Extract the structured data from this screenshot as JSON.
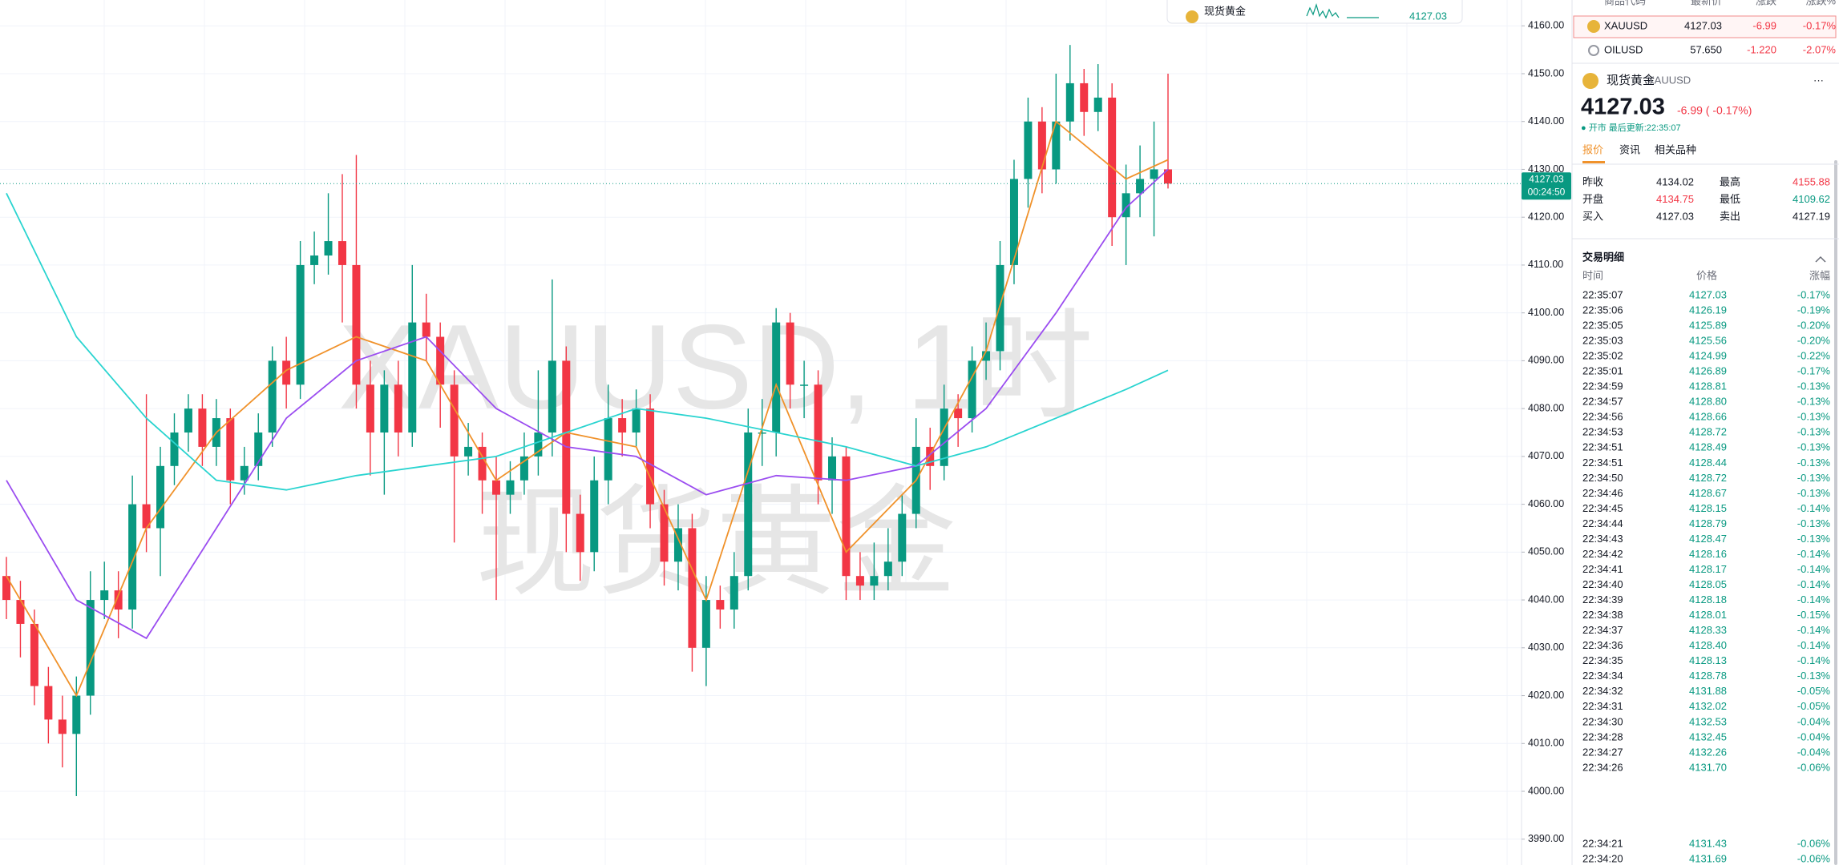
{
  "chart_data": {
    "type": "candlestick",
    "watermark": [
      "XAUUSD, 1时",
      "现货黄金"
    ],
    "up_color": "#089981",
    "down_color": "#f23645",
    "ylim": [
      3984.6,
      4165.4
    ],
    "yticks": [
      {
        "value": 4160,
        "label": "4160.00"
      },
      {
        "value": 4150,
        "label": "4150.00"
      },
      {
        "value": 4140,
        "label": "4140.00"
      },
      {
        "value": 4130,
        "label": "4130.00"
      },
      {
        "value": 4120,
        "label": "4120.00"
      },
      {
        "value": 4110,
        "label": "4110.00"
      },
      {
        "value": 4100,
        "label": "4100.00"
      },
      {
        "value": 4090,
        "label": "4090.00"
      },
      {
        "value": 4080,
        "label": "4080.00"
      },
      {
        "value": 4070,
        "label": "4070.00"
      },
      {
        "value": 4060,
        "label": "4060.00"
      },
      {
        "value": 4050,
        "label": "4050.00"
      },
      {
        "value": 4040,
        "label": "4040.00"
      },
      {
        "value": 4030,
        "label": "4030.00"
      },
      {
        "value": 4020,
        "label": "4020.00"
      },
      {
        "value": 4010,
        "label": "4010.00"
      },
      {
        "value": 4000,
        "label": "4000.00"
      },
      {
        "value": 3990,
        "label": "3990.00"
      }
    ],
    "grid": true,
    "last_price": {
      "value": 4127.03,
      "label": "4127.03"
    },
    "countdown": "00:24:50",
    "ohlc": [
      [
        4045,
        4049,
        4036,
        4040
      ],
      [
        4040,
        4044,
        4028,
        4035
      ],
      [
        4035,
        4038,
        4018,
        4022
      ],
      [
        4022,
        4026,
        4010,
        4015
      ],
      [
        4015,
        4020,
        4005,
        4012
      ],
      [
        4012,
        4024,
        3999,
        4020
      ],
      [
        4020,
        4046,
        4016,
        4040
      ],
      [
        4040,
        4048,
        4036,
        4042
      ],
      [
        4042,
        4046,
        4032,
        4038
      ],
      [
        4038,
        4066,
        4034,
        4060
      ],
      [
        4060,
        4083,
        4050,
        4055
      ],
      [
        4055,
        4072,
        4045,
        4068
      ],
      [
        4068,
        4079,
        4064,
        4075
      ],
      [
        4075,
        4083,
        4071,
        4080
      ],
      [
        4080,
        4083,
        4068,
        4072
      ],
      [
        4072,
        4082,
        4068,
        4078
      ],
      [
        4078,
        4080,
        4060,
        4065
      ],
      [
        4065,
        4072,
        4062,
        4068
      ],
      [
        4068,
        4079,
        4065,
        4075
      ],
      [
        4075,
        4093,
        4072,
        4090
      ],
      [
        4090,
        4095,
        4080,
        4085
      ],
      [
        4085,
        4115,
        4082,
        4110
      ],
      [
        4110,
        4117,
        4106,
        4112
      ],
      [
        4112,
        4125,
        4108,
        4115
      ],
      [
        4115,
        4129,
        4098,
        4110
      ],
      [
        4110,
        4133,
        4080,
        4085
      ],
      [
        4085,
        4090,
        4066,
        4075
      ],
      [
        4075,
        4088,
        4062,
        4085
      ],
      [
        4085,
        4090,
        4070,
        4075
      ],
      [
        4075,
        4110,
        4072,
        4098
      ],
      [
        4098,
        4104,
        4090,
        4095
      ],
      [
        4095,
        4098,
        4076,
        4085
      ],
      [
        4085,
        4088,
        4052,
        4070
      ],
      [
        4070,
        4077,
        4066,
        4072
      ],
      [
        4072,
        4075,
        4058,
        4065
      ],
      [
        4065,
        4070,
        4040,
        4062
      ],
      [
        4062,
        4069,
        4058,
        4065
      ],
      [
        4065,
        4075,
        4062,
        4070
      ],
      [
        4070,
        4088,
        4066,
        4075
      ],
      [
        4075,
        4107,
        4070,
        4090
      ],
      [
        4090,
        4093,
        4050,
        4058
      ],
      [
        4058,
        4062,
        4044,
        4050
      ],
      [
        4050,
        4070,
        4046,
        4065
      ],
      [
        4065,
        4085,
        4060,
        4078
      ],
      [
        4078,
        4082,
        4070,
        4075
      ],
      [
        4075,
        4084,
        4072,
        4080
      ],
      [
        4080,
        4083,
        4055,
        4060
      ],
      [
        4060,
        4063,
        4043,
        4048
      ],
      [
        4048,
        4060,
        4042,
        4055
      ],
      [
        4055,
        4058,
        4025,
        4030
      ],
      [
        4030,
        4045,
        4022,
        4040
      ],
      [
        4040,
        4043,
        4034,
        4038
      ],
      [
        4038,
        4050,
        4034,
        4045
      ],
      [
        4045,
        4080,
        4042,
        4075
      ],
      [
        4075,
        4082,
        4068,
        4075
      ],
      [
        4075,
        4101,
        4070,
        4098
      ],
      [
        4098,
        4100,
        4080,
        4085
      ],
      [
        4085,
        4090,
        4078,
        4085
      ],
      [
        4085,
        4088,
        4060,
        4065
      ],
      [
        4065,
        4074,
        4058,
        4070
      ],
      [
        4070,
        4072,
        4040,
        4045
      ],
      [
        4045,
        4050,
        4040,
        4043
      ],
      [
        4043,
        4052,
        4040,
        4045
      ],
      [
        4045,
        4055,
        4042,
        4048
      ],
      [
        4048,
        4062,
        4045,
        4058
      ],
      [
        4058,
        4078,
        4055,
        4072
      ],
      [
        4072,
        4076,
        4063,
        4068
      ],
      [
        4068,
        4085,
        4065,
        4080
      ],
      [
        4080,
        4083,
        4072,
        4078
      ],
      [
        4078,
        4093,
        4075,
        4090
      ],
      [
        4090,
        4098,
        4086,
        4092
      ],
      [
        4092,
        4115,
        4088,
        4110
      ],
      [
        4110,
        4132,
        4106,
        4128
      ],
      [
        4128,
        4145,
        4122,
        4140
      ],
      [
        4140,
        4143,
        4125,
        4130
      ],
      [
        4130,
        4150,
        4127,
        4140
      ],
      [
        4140,
        4156,
        4136,
        4148
      ],
      [
        4148,
        4151,
        4137,
        4142
      ],
      [
        4142,
        4152,
        4138,
        4145
      ],
      [
        4145,
        4148,
        4114,
        4120
      ],
      [
        4120,
        4131,
        4110,
        4125
      ],
      [
        4125,
        4135,
        4120,
        4128
      ],
      [
        4128,
        4140,
        4116,
        4130
      ],
      [
        4130,
        4150,
        4126,
        4127.03
      ]
    ],
    "series": [
      {
        "color": "#f0922b",
        "x": [
          0,
          5,
          10,
          15,
          20,
          25,
          30,
          35,
          40,
          45,
          50,
          55,
          60,
          65,
          70,
          75,
          80,
          83
        ],
        "values": [
          4045,
          4020,
          4055,
          4075,
          4088,
          4095,
          4090,
          4065,
          4075,
          4072,
          4040,
          4085,
          4050,
          4065,
          4092,
          4140,
          4128,
          4132
        ]
      },
      {
        "color": "#9b4df0",
        "x": [
          0,
          5,
          10,
          15,
          20,
          25,
          30,
          35,
          40,
          45,
          50,
          55,
          60,
          65,
          70,
          75,
          80,
          83
        ],
        "values": [
          4065,
          4040,
          4032,
          4055,
          4078,
          4090,
          4095,
          4080,
          4072,
          4070,
          4062,
          4066,
          4065,
          4068,
          4080,
          4100,
          4122,
          4130
        ]
      },
      {
        "color": "#2ad4d0",
        "x": [
          0,
          5,
          10,
          15,
          20,
          25,
          30,
          35,
          40,
          45,
          50,
          55,
          60,
          65,
          70,
          75,
          80,
          83
        ],
        "values": [
          4125,
          4095,
          4078,
          4065,
          4063,
          4066,
          4068,
          4070,
          4075,
          4080,
          4078,
          4075,
          4072,
          4068,
          4072,
          4078,
          4084,
          4088
        ]
      }
    ]
  },
  "popup": {
    "name": "现货黄金",
    "price": "4127.03"
  },
  "watchlist": {
    "headers": [
      "商品代码",
      "最新价",
      "涨跌",
      "涨跌%"
    ],
    "rows": [
      [
        "XAUUSD",
        "4127.03",
        "-6.99",
        "-0.17%"
      ],
      [
        "OILUSD",
        "57.650",
        "-1.220",
        "-2.07%"
      ]
    ]
  },
  "symbol": {
    "name": "现货黄金",
    "code": "XAUUSD",
    "price": "4127.03",
    "change": "-6.99 ( -0.17%)",
    "status": "● 开市  最后更新:22:35:07"
  },
  "tabs": [
    "报价",
    "资讯",
    "相关品种"
  ],
  "stats": [
    [
      "昨收",
      "4134.02",
      "最高",
      "4155.88"
    ],
    [
      "开盘",
      "4134.75",
      "最低",
      "4109.62"
    ],
    [
      "买入",
      "4127.03",
      "卖出",
      "4127.19"
    ]
  ],
  "trades": {
    "title": "交易明细",
    "headers": [
      "时间",
      "价格",
      "涨幅"
    ],
    "rows": [
      [
        "22:35:07",
        "4127.03",
        "-0.17%"
      ],
      [
        "22:35:06",
        "4126.19",
        "-0.19%"
      ],
      [
        "22:35:05",
        "4125.89",
        "-0.20%"
      ],
      [
        "22:35:03",
        "4125.56",
        "-0.20%"
      ],
      [
        "22:35:02",
        "4124.99",
        "-0.22%"
      ],
      [
        "22:35:01",
        "4126.89",
        "-0.17%"
      ],
      [
        "22:34:59",
        "4128.81",
        "-0.13%"
      ],
      [
        "22:34:57",
        "4128.80",
        "-0.13%"
      ],
      [
        "22:34:56",
        "4128.66",
        "-0.13%"
      ],
      [
        "22:34:53",
        "4128.72",
        "-0.13%"
      ],
      [
        "22:34:51",
        "4128.49",
        "-0.13%"
      ],
      [
        "22:34:51",
        "4128.44",
        "-0.13%"
      ],
      [
        "22:34:50",
        "4128.72",
        "-0.13%"
      ],
      [
        "22:34:46",
        "4128.67",
        "-0.13%"
      ],
      [
        "22:34:45",
        "4128.15",
        "-0.14%"
      ],
      [
        "22:34:44",
        "4128.79",
        "-0.13%"
      ],
      [
        "22:34:43",
        "4128.47",
        "-0.13%"
      ],
      [
        "22:34:42",
        "4128.16",
        "-0.14%"
      ],
      [
        "22:34:41",
        "4128.17",
        "-0.14%"
      ],
      [
        "22:34:40",
        "4128.05",
        "-0.14%"
      ],
      [
        "22:34:39",
        "4128.18",
        "-0.14%"
      ],
      [
        "22:34:38",
        "4128.01",
        "-0.15%"
      ],
      [
        "22:34:37",
        "4128.33",
        "-0.14%"
      ],
      [
        "22:34:36",
        "4128.40",
        "-0.14%"
      ],
      [
        "22:34:35",
        "4128.13",
        "-0.14%"
      ],
      [
        "22:34:34",
        "4128.78",
        "-0.13%"
      ],
      [
        "22:34:32",
        "4131.88",
        "-0.05%"
      ],
      [
        "22:34:31",
        "4132.02",
        "-0.05%"
      ],
      [
        "22:34:30",
        "4132.53",
        "-0.04%"
      ],
      [
        "22:34:28",
        "4132.45",
        "-0.04%"
      ],
      [
        "22:34:27",
        "4132.26",
        "-0.04%"
      ],
      [
        "22:34:26",
        "4131.70",
        "-0.06%"
      ],
      [
        "22:34:21",
        "4131.43",
        "-0.06%"
      ],
      [
        "22:34:20",
        "4131.69",
        "-0.06%"
      ]
    ]
  }
}
